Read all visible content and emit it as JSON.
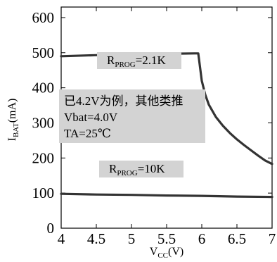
{
  "chart_data": {
    "type": "line",
    "xlabel_main": "V",
    "xlabel_sub": "CC",
    "xlabel_tail": "(V)",
    "ylabel_main": "I",
    "ylabel_sub": "BAT",
    "ylabel_tail": "(mA)",
    "xlim": [
      4,
      7
    ],
    "ylim": [
      0,
      630
    ],
    "xticks": [
      4,
      4.5,
      5,
      5.5,
      6,
      6.5,
      7
    ],
    "xtick_labels": [
      "4",
      "4.5",
      "5",
      "5.5",
      "6",
      "6.5",
      "7"
    ],
    "yticks": [
      0,
      100,
      200,
      300,
      400,
      500,
      600
    ],
    "ytick_labels": [
      "0",
      "100",
      "200",
      "300",
      "400",
      "500",
      "600"
    ],
    "grid": false,
    "line_color": "#333333",
    "box_color": "#d3d3d3",
    "series": [
      {
        "name_main": "R",
        "name_sub": "PROG",
        "name_tail": "=2.1K",
        "x": [
          4.0,
          4.5,
          5.0,
          5.5,
          5.9,
          5.95,
          6.0,
          6.05,
          6.1,
          6.2,
          6.3,
          6.4,
          6.5,
          6.6,
          6.7,
          6.8,
          6.9,
          7.0
        ],
        "y": [
          490,
          493,
          495,
          497,
          498,
          498,
          420,
          380,
          352,
          317,
          292,
          271,
          253,
          237,
          222,
          207,
          193,
          183
        ]
      },
      {
        "name_main": "R",
        "name_sub": "PROG",
        "name_tail": "=10K",
        "x": [
          4.0,
          4.5,
          5.0,
          5.5,
          6.0,
          6.5,
          7.0
        ],
        "y": [
          98,
          96,
          95,
          93,
          92,
          90,
          89
        ]
      }
    ],
    "annotation": {
      "lines": [
        "已4.2V为例，其他类推",
        "Vbat=4.0V",
        "TA=25℃"
      ]
    }
  }
}
